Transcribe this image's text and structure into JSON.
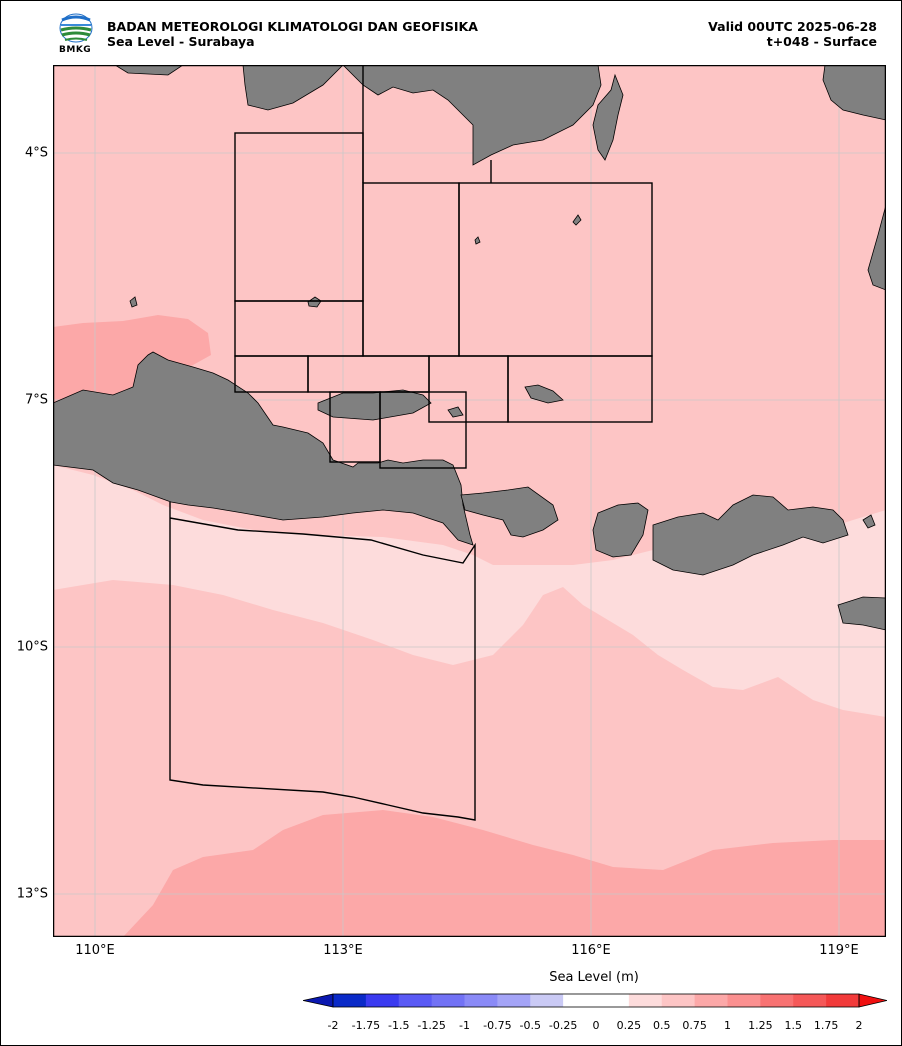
{
  "header": {
    "agency": "BADAN METEOROLOGI KLIMATOLOGI DAN GEOFISIKA",
    "product": "Sea Level - Surabaya",
    "valid": "Valid 00UTC 2025-06-28",
    "forecast": "t+048 - Surface",
    "logo_text": "BMKG"
  },
  "map": {
    "lat_labels": [
      "4°S",
      "7°S",
      "10°S",
      "13°S"
    ],
    "lon_labels": [
      "110°E",
      "113°E",
      "116°E",
      "119°E"
    ],
    "colors": {
      "land": "#808080",
      "level_0_25": "#fddcdc",
      "level_0_5": "#fdc5c5",
      "level_0_75": "#fca8a8",
      "grid": "#c8c8c8"
    }
  },
  "colorbar": {
    "title": "Sea Level (m)",
    "ticks": [
      "-2",
      "-1.75",
      "-1.5",
      "-1.25",
      "-1",
      "-0.75",
      "-0.5",
      "-0.25",
      "0",
      "0.25",
      "0.5",
      "0.75",
      "1",
      "1.25",
      "1.5",
      "1.75",
      "2"
    ],
    "colors": [
      "#0a2ac8",
      "#3a3af0",
      "#5a5af5",
      "#7272f5",
      "#8a8af7",
      "#a4a4f7",
      "#cacaf5",
      "#ffffff",
      "#ffffff",
      "#fddcdc",
      "#fdc5c5",
      "#fca8a8",
      "#fb9090",
      "#f87272",
      "#f55858",
      "#f23a3a"
    ]
  }
}
